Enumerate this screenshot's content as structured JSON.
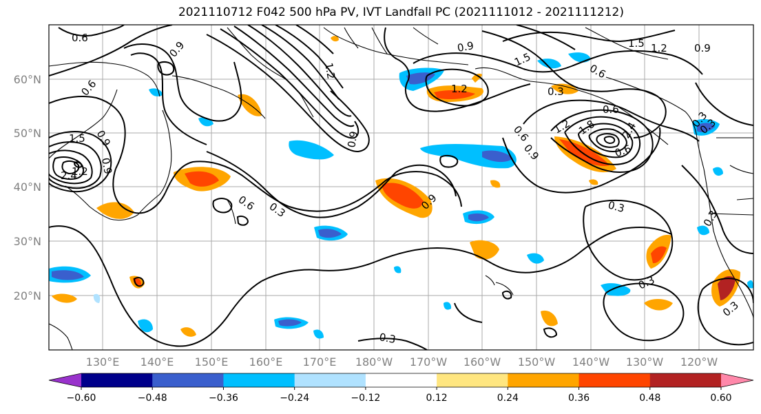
{
  "title": "2021110712 F042 500 hPa PV, IVT Landfall PC (2021111012 - 2021111212)",
  "latitude_labels": [
    "60°N",
    "50°N",
    "40°N",
    "30°N",
    "20°N"
  ],
  "longitude_labels": [
    "130°E",
    "140°E",
    "150°E",
    "160°E",
    "170°E",
    "180°W",
    "170°W",
    "160°W",
    "150°W",
    "140°W",
    "130°W",
    "120°W"
  ],
  "contour_labels": [
    "0.6",
    "0.9",
    "1.5",
    "1.2",
    "0.9",
    "0.6",
    "0.9",
    "0.3",
    "0.6",
    "0.9",
    "1.5",
    "1.2",
    "0.9",
    "0.6",
    "0.3",
    "1.2",
    "0.9",
    "1.5",
    "1.2",
    "1.8",
    "2.4",
    "0.6",
    "0.6",
    "0.9",
    "0.6",
    "0.3",
    "0.9",
    "1.2",
    "2.4",
    "0.3",
    "0.3",
    "0.3",
    "0.3",
    "0.3",
    "0.3"
  ],
  "colorbar": {
    "tick_labels": [
      "−0.60",
      "−0.48",
      "−0.36",
      "−0.24",
      "−0.12",
      "0.12",
      "0.24",
      "0.36",
      "0.48",
      "0.60"
    ],
    "colors": [
      "#9932cc",
      "#00008b",
      "#3a5fcd",
      "#00bfff",
      "#b0e2ff",
      "#ffffff",
      "#ffe680",
      "#ffa500",
      "#ff4500",
      "#b22222",
      "#ff88aa"
    ]
  }
}
